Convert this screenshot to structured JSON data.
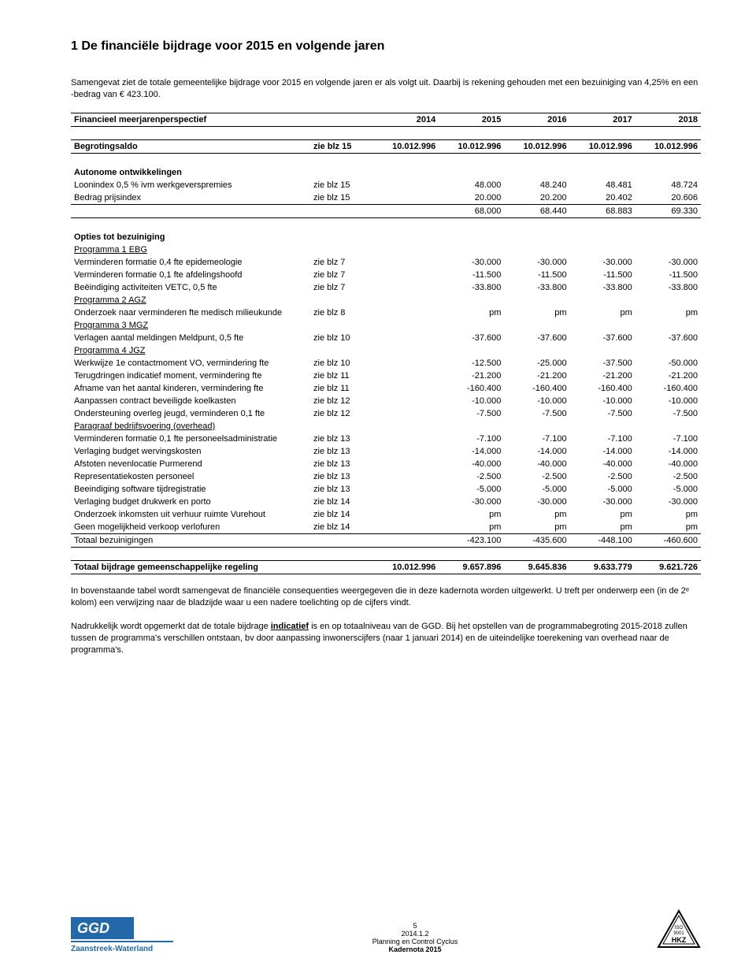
{
  "heading": "1   De financiële bijdrage voor 2015 en volgende jaren",
  "intro1_pre": "Samengevat ziet de totale gemeentelijke bijdrage voor 2015 en volgende jaren er als volgt uit. Daarbij is rekening gehouden met een bezuiniging van 4,25% en een -bedrag van ",
  "intro1_amt": "€ 423.100.",
  "header": {
    "title": "Financieel meerjarenperspectief",
    "years": [
      "2014",
      "2015",
      "2016",
      "2017",
      "2018"
    ]
  },
  "begroting": {
    "label": "Begrotingsaldo",
    "ref": "zie blz 15",
    "vals": [
      "10.012.996",
      "10.012.996",
      "10.012.996",
      "10.012.996",
      "10.012.996"
    ]
  },
  "autonome": {
    "title": "Autonome ontwikkelingen",
    "rows": [
      {
        "label": "Loonindex 0,5 % ivm werkgeverspremies",
        "ref": "zie blz 15",
        "vals": [
          "",
          "48.000",
          "48.240",
          "48.481",
          "48.724"
        ]
      },
      {
        "label": "Bedrag prijsindex",
        "ref": "zie blz 15",
        "vals": [
          "",
          "20.000",
          "20.200",
          "20.402",
          "20.606"
        ]
      }
    ],
    "subtotal": [
      "",
      "68.000",
      "68.440",
      "68.883",
      "69.330"
    ]
  },
  "opties": {
    "title": "Opties tot bezuiniging",
    "groups": [
      {
        "header": "Programma 1 EBG",
        "rows": [
          {
            "label": "Verminderen formatie 0,4 fte epidemeologie",
            "ref": "zie blz 7",
            "vals": [
              "",
              "-30.000",
              "-30.000",
              "-30.000",
              "-30.000"
            ]
          },
          {
            "label": "Verminderen formatie 0,1 fte afdelingshoofd",
            "ref": "zie blz 7",
            "vals": [
              "",
              "-11.500",
              "-11.500",
              "-11.500",
              "-11.500"
            ]
          },
          {
            "label": "Beëindiging activiteiten VETC, 0,5 fte",
            "ref": "zie blz 7",
            "vals": [
              "",
              "-33.800",
              "-33.800",
              "-33.800",
              "-33.800"
            ]
          }
        ]
      },
      {
        "header": "Programma 2 AGZ",
        "rows": [
          {
            "label": "Onderzoek naar verminderen fte medisch milieukunde",
            "ref": "zie blz 8",
            "vals": [
              "",
              "pm",
              "pm",
              "pm",
              "pm"
            ]
          }
        ]
      },
      {
        "header": "Programma 3 MGZ",
        "rows": [
          {
            "label": "Verlagen aantal meldingen Meldpunt, 0,5 fte",
            "ref": "zie blz 10",
            "vals": [
              "",
              "-37.600",
              "-37.600",
              "-37.600",
              "-37.600"
            ]
          }
        ]
      },
      {
        "header": "Programma 4 JGZ",
        "rows": [
          {
            "label": "Werkwijze 1e contactmoment VO, vermindering fte",
            "ref": "zie blz 10",
            "vals": [
              "",
              "-12.500",
              "-25.000",
              "-37.500",
              "-50.000"
            ]
          },
          {
            "label": "Terugdringen indicatief moment, vermindering fte",
            "ref": "zie blz 11",
            "vals": [
              "",
              "-21.200",
              "-21.200",
              "-21.200",
              "-21.200"
            ]
          },
          {
            "label": "Afname van het aantal kinderen, vermindering fte",
            "ref": "zie blz 11",
            "vals": [
              "",
              "-160.400",
              "-160.400",
              "-160.400",
              "-160.400"
            ]
          },
          {
            "label": "Aanpassen contract beveiligde koelkasten",
            "ref": "zie blz 12",
            "vals": [
              "",
              "-10.000",
              "-10.000",
              "-10.000",
              "-10.000"
            ]
          },
          {
            "label": "Ondersteuning overleg jeugd, verminderen 0,1 fte",
            "ref": "zie blz 12",
            "vals": [
              "",
              "-7.500",
              "-7.500",
              "-7.500",
              "-7.500"
            ]
          }
        ]
      },
      {
        "header": "Paragraaf bedrijfsvoering (overhead)",
        "rows": [
          {
            "label": "Verminderen formatie 0,1 fte personeelsadministratie",
            "ref": "zie blz 13",
            "vals": [
              "",
              "-7.100",
              "-7.100",
              "-7.100",
              "-7.100"
            ]
          },
          {
            "label": "Verlaging budget wervingskosten",
            "ref": "zie blz 13",
            "vals": [
              "",
              "-14.000",
              "-14.000",
              "-14.000",
              "-14.000"
            ]
          },
          {
            "label": "Afstoten nevenlocatie Purmerend",
            "ref": "zie blz 13",
            "vals": [
              "",
              "-40.000",
              "-40.000",
              "-40.000",
              "-40.000"
            ]
          },
          {
            "label": "Representatiekosten personeel",
            "ref": "zie blz 13",
            "vals": [
              "",
              "-2.500",
              "-2.500",
              "-2.500",
              "-2.500"
            ]
          },
          {
            "label": "Beeindiging software tijdregistratie",
            "ref": "zie blz 13",
            "vals": [
              "",
              "-5.000",
              "-5.000",
              "-5.000",
              "-5.000"
            ]
          },
          {
            "label": "Verlaging budget drukwerk en porto",
            "ref": "zie blz 14",
            "vals": [
              "",
              "-30.000",
              "-30.000",
              "-30.000",
              "-30.000"
            ]
          },
          {
            "label": "Onderzoek inkomsten uit verhuur ruimte Vurehout",
            "ref": "zie blz 14",
            "vals": [
              "",
              "pm",
              "pm",
              "pm",
              "pm"
            ]
          },
          {
            "label": "Geen mogelijkheid verkoop verlofuren",
            "ref": "zie blz 14",
            "vals": [
              "",
              "pm",
              "pm",
              "pm",
              "pm"
            ]
          }
        ]
      }
    ],
    "totaal": {
      "label": "Totaal bezuinigingen",
      "vals": [
        "",
        "-423.100",
        "-435.600",
        "-448.100",
        "-460.600"
      ]
    }
  },
  "grand_total": {
    "label": "Totaal bijdrage gemeenschappelijke regeling",
    "vals": [
      "10.012.996",
      "9.657.896",
      "9.645.836",
      "9.633.779",
      "9.621.726"
    ]
  },
  "body1": "In bovenstaande tabel wordt samengevat de financiële consequenties weergegeven die in deze kadernota worden uitgewerkt. U treft per onderwerp een (in de 2ᵉ kolom) een verwijzing naar de bladzijde waar u een nadere toelichting op de cijfers vindt.",
  "body2_pre": "Nadrukkelijk wordt opgemerkt dat de totale bijdrage ",
  "body2_bold": "indicatief",
  "body2_post": " is en op totaalniveau van de GGD. Bij het opstellen van de programmabegroting 2015-2018 zullen tussen de programma's verschillen ontstaan, bv door aanpassing inwonerscijfers (naar 1 januari 2014) en de uiteindelijke toerekening van overhead naar de programma's.",
  "footer": {
    "page": "5",
    "line1": "2014.1.2",
    "line2": "Planning en Control Cyclus",
    "line3": "Kadernota 2015",
    "brand": "Zaanstreek-Waterland",
    "logo_text": "GGD"
  },
  "style": {
    "accent": "#2063a5",
    "border": "#000000"
  }
}
